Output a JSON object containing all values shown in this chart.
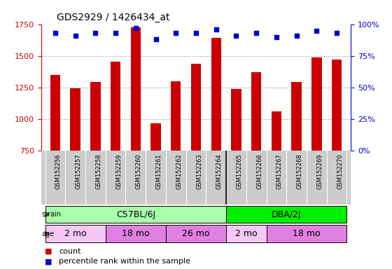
{
  "title": "GDS2929 / 1426434_at",
  "samples": [
    "GSM152256",
    "GSM152257",
    "GSM152258",
    "GSM152259",
    "GSM152260",
    "GSM152261",
    "GSM152262",
    "GSM152263",
    "GSM152264",
    "GSM152265",
    "GSM152266",
    "GSM152267",
    "GSM152268",
    "GSM152269",
    "GSM152270"
  ],
  "counts": [
    1352,
    1246,
    1293,
    1453,
    1726,
    968,
    1300,
    1440,
    1640,
    1237,
    1370,
    1063,
    1293,
    1490,
    1470
  ],
  "percentile_ranks": [
    93,
    91,
    93,
    93,
    97,
    88,
    93,
    93,
    96,
    91,
    93,
    90,
    91,
    95,
    93
  ],
  "bar_color": "#cc0000",
  "dot_color": "#0000cc",
  "ylim_left": [
    750,
    1750
  ],
  "ylim_right": [
    0,
    100
  ],
  "yticks_left": [
    750,
    1000,
    1250,
    1500,
    1750
  ],
  "yticks_right": [
    0,
    25,
    50,
    75,
    100
  ],
  "strain_groups": [
    {
      "label": "C57BL/6J",
      "start": 0,
      "end": 9,
      "color": "#aaffaa"
    },
    {
      "label": "DBA/2J",
      "start": 9,
      "end": 15,
      "color": "#00ee00"
    }
  ],
  "age_groups": [
    {
      "label": "2 mo",
      "start": 0,
      "end": 3,
      "color": "#f5c8f5"
    },
    {
      "label": "18 mo",
      "start": 3,
      "end": 6,
      "color": "#e080e0"
    },
    {
      "label": "26 mo",
      "start": 6,
      "end": 9,
      "color": "#e080e0"
    },
    {
      "label": "2 mo",
      "start": 9,
      "end": 11,
      "color": "#f5c8f5"
    },
    {
      "label": "18 mo",
      "start": 11,
      "end": 15,
      "color": "#e080e0"
    }
  ],
  "legend_count_color": "#cc0000",
  "legend_dot_color": "#0000cc",
  "axis_label_color_left": "#cc0000",
  "axis_label_color_right": "#0000cc",
  "background_color": "#ffffff",
  "grid_color": "#888888",
  "label_bg_color": "#cccccc"
}
